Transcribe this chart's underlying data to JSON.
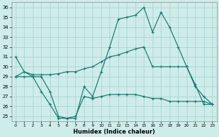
{
  "xlabel": "Humidex (Indice chaleur)",
  "background_color": "#ceecea",
  "grid_color": "#aad4d0",
  "line_color": "#1a7a70",
  "xlim": [
    -0.5,
    23.5
  ],
  "ylim": [
    24.5,
    36.5
  ],
  "yticks": [
    25,
    26,
    27,
    28,
    29,
    30,
    31,
    32,
    33,
    34,
    35,
    36
  ],
  "xticks": [
    0,
    1,
    2,
    3,
    4,
    5,
    6,
    7,
    8,
    9,
    10,
    11,
    12,
    13,
    14,
    15,
    16,
    17,
    18,
    19,
    20,
    21,
    22,
    23
  ],
  "series1": [
    31,
    29.5,
    29,
    29,
    27.5,
    25.0,
    24.8,
    24.8,
    28.0,
    27.0,
    29.5,
    32.0,
    34.8,
    35.0,
    35.2,
    36.0,
    33.5,
    35.5,
    34.0,
    32.0,
    30.0,
    28.0,
    27.0,
    26.2
  ],
  "series2": [
    29.0,
    29.5,
    29.2,
    29.2,
    29.2,
    29.3,
    29.5,
    29.5,
    29.8,
    30.0,
    30.5,
    31.0,
    31.2,
    31.5,
    31.8,
    32.0,
    30.0,
    30.0,
    30.0,
    30.0,
    30.0,
    28.2,
    26.2,
    26.2
  ],
  "series3": [
    29.0,
    29.0,
    29.0,
    27.5,
    26.2,
    24.8,
    24.8,
    25.0,
    27.0,
    26.8,
    27.0,
    27.2,
    27.2,
    27.2,
    27.2,
    27.0,
    26.8,
    26.8,
    26.5,
    26.5,
    26.5,
    26.5,
    26.5,
    26.2
  ]
}
